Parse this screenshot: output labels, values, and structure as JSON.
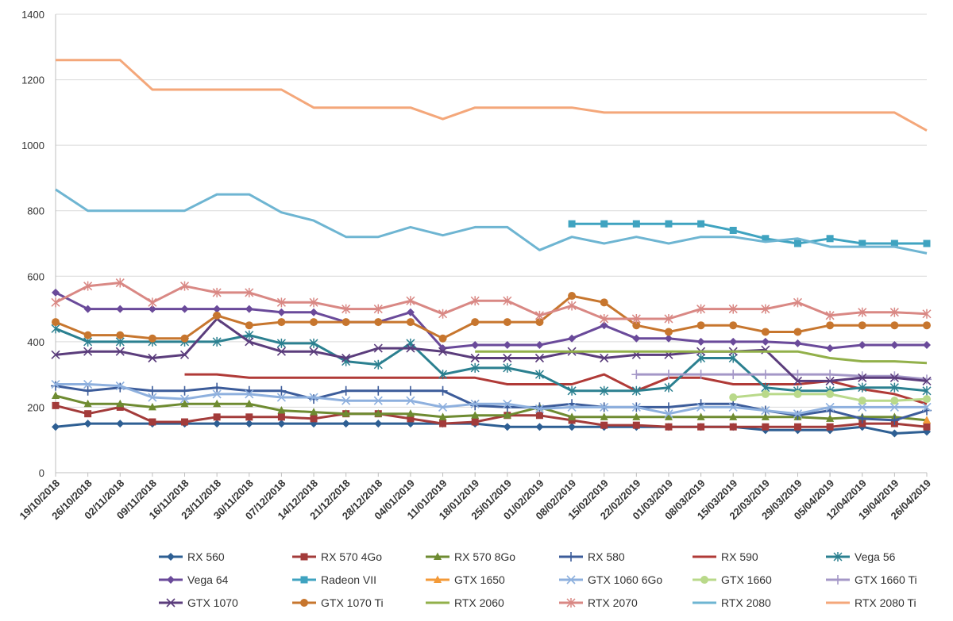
{
  "chart_data": {
    "type": "line",
    "title": "",
    "xlabel": "",
    "ylabel": "",
    "ylim": [
      0,
      1400
    ],
    "yticks": [
      0,
      200,
      400,
      600,
      800,
      1000,
      1200,
      1400
    ],
    "grid": "horizontal",
    "legend_position": "bottom",
    "categories": [
      "19/10/2018",
      "26/10/2018",
      "02/11/2018",
      "09/11/2018",
      "16/11/2018",
      "23/11/2018",
      "30/11/2018",
      "07/12/2018",
      "14/12/2018",
      "21/12/2018",
      "28/12/2018",
      "04/01/2019",
      "11/01/2019",
      "18/01/2019",
      "25/01/2019",
      "01/02/2019",
      "08/02/2019",
      "15/02/2019",
      "22/02/2019",
      "01/03/2019",
      "08/03/2019",
      "15/03/2019",
      "22/03/2019",
      "29/03/2019",
      "05/04/2019",
      "12/04/2019",
      "19/04/2019",
      "26/04/2019"
    ],
    "series": [
      {
        "name": "RX 560",
        "color": "#2E5F93",
        "marker": "diamond",
        "values": [
          140,
          150,
          150,
          150,
          150,
          150,
          150,
          150,
          150,
          150,
          150,
          150,
          150,
          150,
          140,
          140,
          140,
          140,
          140,
          140,
          140,
          140,
          130,
          130,
          130,
          140,
          120,
          125
        ]
      },
      {
        "name": "RX 570 4Go",
        "color": "#A33B3A",
        "marker": "square",
        "values": [
          205,
          180,
          200,
          155,
          155,
          170,
          170,
          170,
          165,
          180,
          180,
          165,
          150,
          155,
          175,
          175,
          160,
          145,
          145,
          140,
          140,
          140,
          140,
          140,
          140,
          150,
          150,
          140
        ]
      },
      {
        "name": "RX 570 8Go",
        "color": "#6E8B31",
        "marker": "triangle",
        "values": [
          235,
          210,
          210,
          200,
          210,
          210,
          210,
          190,
          185,
          180,
          180,
          180,
          170,
          175,
          175,
          200,
          170,
          170,
          170,
          170,
          170,
          170,
          170,
          170,
          165,
          170,
          170,
          160
        ]
      },
      {
        "name": "RX 580",
        "color": "#3C5C9A",
        "marker": "plus",
        "values": [
          265,
          250,
          260,
          250,
          250,
          260,
          250,
          250,
          225,
          250,
          250,
          250,
          250,
          205,
          200,
          200,
          210,
          200,
          200,
          200,
          210,
          210,
          190,
          175,
          190,
          165,
          160,
          190
        ]
      },
      {
        "name": "RX 590",
        "color": "#B03A37",
        "marker": "none",
        "values": [
          null,
          null,
          null,
          null,
          300,
          300,
          290,
          290,
          290,
          290,
          290,
          290,
          290,
          290,
          270,
          270,
          270,
          300,
          250,
          290,
          290,
          270,
          270,
          270,
          280,
          255,
          240,
          210
        ]
      },
      {
        "name": "Vega 56",
        "color": "#2B8090",
        "marker": "star",
        "values": [
          440,
          400,
          400,
          400,
          400,
          400,
          420,
          395,
          395,
          340,
          330,
          395,
          300,
          320,
          320,
          300,
          250,
          250,
          250,
          260,
          350,
          350,
          260,
          250,
          250,
          260,
          260,
          250
        ]
      },
      {
        "name": "Vega 64",
        "color": "#6A4A9A",
        "marker": "diamond",
        "values": [
          550,
          500,
          500,
          500,
          500,
          500,
          500,
          490,
          490,
          460,
          460,
          490,
          380,
          390,
          390,
          390,
          410,
          450,
          410,
          410,
          400,
          400,
          400,
          395,
          380,
          390,
          390,
          390
        ]
      },
      {
        "name": "Radeon VII",
        "color": "#3FA3C0",
        "marker": "square",
        "values": [
          null,
          null,
          null,
          null,
          null,
          null,
          null,
          null,
          null,
          null,
          null,
          null,
          null,
          null,
          null,
          null,
          760,
          760,
          760,
          760,
          760,
          740,
          715,
          700,
          715,
          700,
          700,
          700
        ]
      },
      {
        "name": "GTX 1650",
        "color": "#F39A38",
        "marker": "triangle",
        "values": [
          null,
          null,
          null,
          null,
          null,
          null,
          null,
          null,
          null,
          null,
          null,
          null,
          null,
          null,
          null,
          null,
          null,
          null,
          null,
          null,
          null,
          null,
          null,
          null,
          null,
          null,
          null,
          160
        ]
      },
      {
        "name": "GTX 1060 6Go",
        "color": "#8EB0DE",
        "marker": "cross",
        "values": [
          270,
          270,
          265,
          230,
          225,
          240,
          240,
          230,
          230,
          220,
          220,
          220,
          200,
          210,
          210,
          195,
          200,
          200,
          200,
          180,
          200,
          200,
          190,
          180,
          200,
          200,
          200,
          200
        ]
      },
      {
        "name": "GTX 1660",
        "color": "#B9D98A",
        "marker": "circle",
        "values": [
          null,
          null,
          null,
          null,
          null,
          null,
          null,
          null,
          null,
          null,
          null,
          null,
          null,
          null,
          null,
          null,
          null,
          null,
          null,
          null,
          null,
          230,
          240,
          240,
          240,
          220,
          220,
          225
        ]
      },
      {
        "name": "GTX 1660 Ti",
        "color": "#A497C7",
        "marker": "plus",
        "values": [
          null,
          null,
          null,
          null,
          null,
          null,
          null,
          null,
          null,
          null,
          null,
          null,
          null,
          null,
          null,
          null,
          null,
          null,
          300,
          300,
          300,
          300,
          300,
          300,
          300,
          295,
          295,
          285
        ]
      },
      {
        "name": "GTX 1070",
        "color": "#5B3D7C",
        "marker": "cross",
        "values": [
          360,
          370,
          370,
          350,
          360,
          470,
          400,
          370,
          370,
          350,
          380,
          380,
          370,
          350,
          350,
          350,
          370,
          350,
          360,
          360,
          370,
          370,
          375,
          280,
          280,
          290,
          290,
          280
        ]
      },
      {
        "name": "GTX 1070 Ti",
        "color": "#C7762E",
        "marker": "circle",
        "values": [
          460,
          420,
          420,
          410,
          410,
          480,
          450,
          460,
          460,
          460,
          460,
          460,
          410,
          460,
          460,
          460,
          540,
          520,
          450,
          430,
          450,
          450,
          430,
          430,
          450,
          450,
          450,
          450
        ]
      },
      {
        "name": "RTX 2060",
        "color": "#92B04A",
        "marker": "none",
        "values": [
          null,
          null,
          null,
          null,
          null,
          null,
          null,
          null,
          null,
          null,
          null,
          null,
          null,
          370,
          370,
          370,
          370,
          370,
          370,
          370,
          370,
          370,
          370,
          370,
          350,
          340,
          340,
          335
        ]
      },
      {
        "name": "RTX 2070",
        "color": "#D98884",
        "marker": "star",
        "values": [
          520,
          570,
          580,
          520,
          570,
          550,
          550,
          520,
          520,
          500,
          500,
          525,
          485,
          525,
          525,
          480,
          510,
          470,
          470,
          470,
          500,
          500,
          500,
          520,
          480,
          490,
          490,
          485
        ]
      },
      {
        "name": "RTX 2080",
        "color": "#6EB5D2",
        "marker": "none",
        "values": [
          865,
          800,
          800,
          800,
          800,
          850,
          850,
          795,
          770,
          720,
          720,
          750,
          725,
          750,
          750,
          680,
          720,
          700,
          720,
          700,
          720,
          720,
          705,
          715,
          690,
          690,
          690,
          670
        ]
      },
      {
        "name": "RTX 2080 Ti",
        "color": "#F4A77A",
        "marker": "none",
        "values": [
          1260,
          1260,
          1260,
          1170,
          1170,
          1170,
          1170,
          1170,
          1115,
          1115,
          1115,
          1115,
          1080,
          1115,
          1115,
          1115,
          1115,
          1100,
          1100,
          1100,
          1100,
          1100,
          1100,
          1100,
          1100,
          1100,
          1100,
          1045
        ]
      }
    ]
  }
}
